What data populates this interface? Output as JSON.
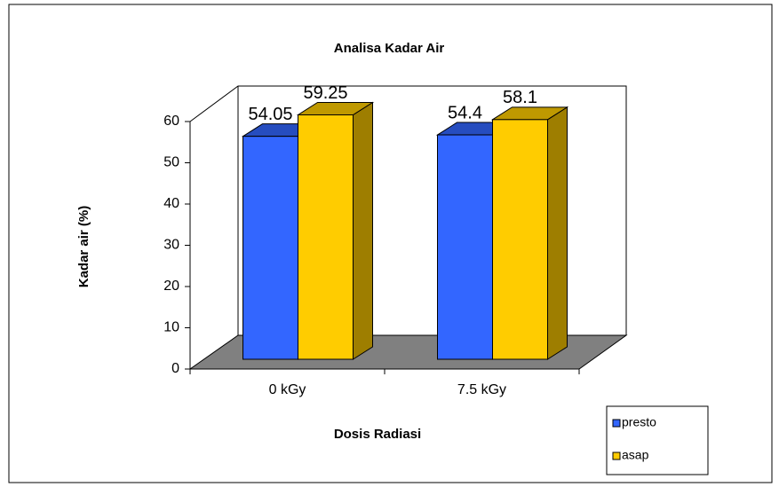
{
  "chart_data": {
    "type": "bar",
    "title": "Analisa Kadar Air",
    "xlabel": "Dosis Radiasi",
    "ylabel": "Kadar air (%)",
    "categories": [
      "0 kGy",
      "7.5 kGy"
    ],
    "series": [
      {
        "name": "presto",
        "color": "#3366ff",
        "values": [
          54.05,
          54.4
        ]
      },
      {
        "name": "asap",
        "color": "#ffcc00",
        "values": [
          59.25,
          58.1
        ]
      }
    ],
    "ylim": [
      0,
      60
    ],
    "yticks": [
      0,
      10,
      20,
      30,
      40,
      50,
      60
    ],
    "legend": "bottom-right"
  }
}
